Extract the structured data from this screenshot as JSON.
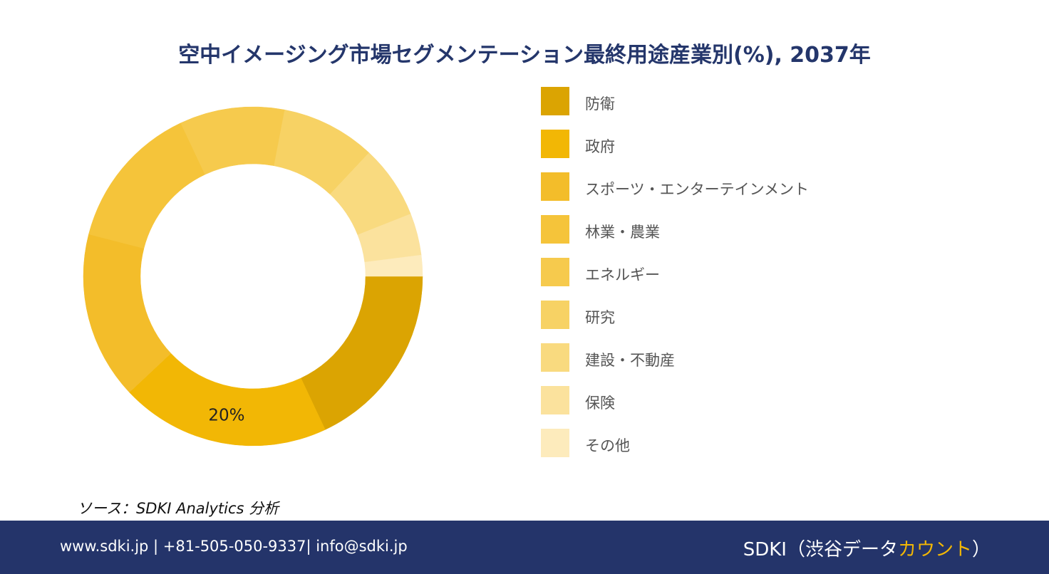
{
  "title": "空中イメージング市場セグメンテーション最終用途産業別(%), 2037年",
  "source": "ソース：SDKI Analytics 分析",
  "footer": {
    "contact": "www.sdki.jp | +81-505-050-9337| info@sdki.jp",
    "brand_main": "SDKI（渋谷データ",
    "brand_accent": "カウント",
    "brand_close": "）"
  },
  "chart_data": {
    "type": "pie",
    "donut": true,
    "title": "空中イメージング市場セグメンテーション最終用途産業別(%), 2037年",
    "legend_position": "right",
    "slices": [
      {
        "label": "防衛",
        "value": 18,
        "color": "#dba402"
      },
      {
        "label": "政府",
        "value": 20,
        "color": "#f2b705",
        "data_label": "20%"
      },
      {
        "label": "スポーツ・エンターテインメント",
        "value": 16,
        "color": "#f3bd2a"
      },
      {
        "label": "林業・農業",
        "value": 14,
        "color": "#f5c43a"
      },
      {
        "label": "エネルギー",
        "value": 10,
        "color": "#f6ca4d"
      },
      {
        "label": "研究",
        "value": 9,
        "color": "#f7d264"
      },
      {
        "label": "建設・不動産",
        "value": 7,
        "color": "#f9da7f"
      },
      {
        "label": "保険",
        "value": 4,
        "color": "#fbe29d"
      },
      {
        "label": "その他",
        "value": 2,
        "color": "#fdebbc"
      }
    ]
  }
}
